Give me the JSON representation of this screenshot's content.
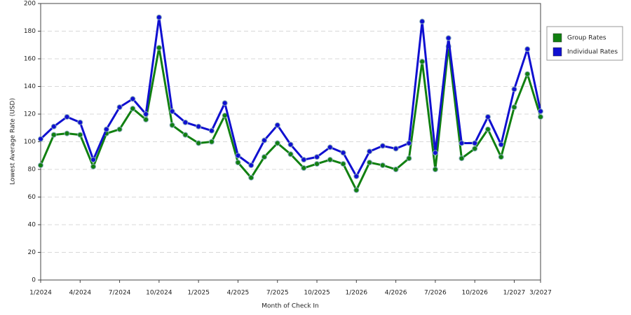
{
  "chart_data": {
    "type": "line",
    "x_label": "Month of Check In",
    "y_label": "Lowest Average Rate (USD)",
    "categories": [
      "1/2024",
      null,
      null,
      "4/2024",
      null,
      null,
      "7/2024",
      null,
      null,
      "10/2024",
      null,
      null,
      "1/2025",
      null,
      null,
      "4/2025",
      null,
      null,
      "7/2025",
      null,
      null,
      "10/2025",
      null,
      null,
      "1/2026",
      null,
      null,
      "4/2026",
      null,
      null,
      "7/2026",
      null,
      null,
      "10/2026",
      null,
      null,
      "1/2027",
      null,
      "3/2027"
    ],
    "series": [
      {
        "name": "Group Rates",
        "color": "#118011",
        "values": [
          83,
          105,
          106,
          105,
          82,
          106,
          109,
          124,
          116,
          168,
          112,
          105,
          99,
          100,
          119,
          85,
          74,
          89,
          99,
          91,
          81,
          84,
          87,
          84,
          65,
          85,
          83,
          80,
          88,
          158,
          80,
          169,
          88,
          95,
          109,
          89,
          125,
          149,
          118
        ]
      },
      {
        "name": "Individual Rates",
        "color": "#1010d0",
        "values": [
          102,
          111,
          118,
          114,
          87,
          109,
          125,
          131,
          120,
          190,
          122,
          114,
          111,
          108,
          128,
          90,
          83,
          101,
          112,
          98,
          87,
          89,
          96,
          92,
          75,
          93,
          97,
          95,
          99,
          187,
          92,
          175,
          99,
          99,
          118,
          98,
          138,
          167,
          122
        ]
      }
    ],
    "ylim": [
      0,
      200
    ],
    "yticks": [
      0,
      20,
      40,
      60,
      80,
      100,
      120,
      140,
      160,
      180,
      200
    ],
    "grid": true,
    "legend": "right"
  }
}
